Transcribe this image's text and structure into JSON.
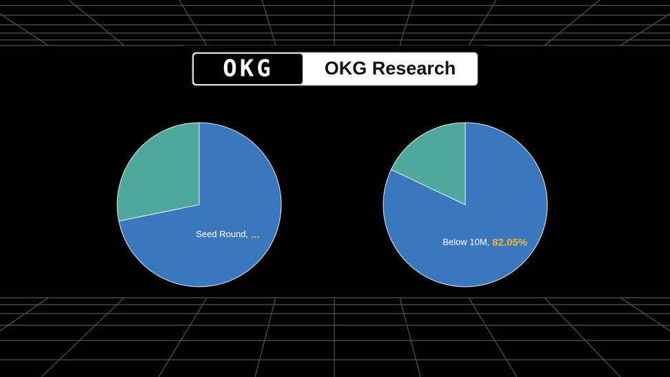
{
  "header": {
    "logo": "OKG",
    "title": "OKG Research"
  },
  "chart_data": [
    {
      "type": "pie",
      "categories": [
        "Seed Round,",
        null
      ],
      "values": [
        71.8,
        28.2
      ],
      "value_labels": [
        "...",
        null
      ],
      "colors": [
        "#3a77bd",
        "#4fa89c"
      ]
    },
    {
      "type": "pie",
      "categories": [
        "Below 10M,",
        null
      ],
      "values": [
        82.05,
        17.95
      ],
      "value_labels": [
        "82.05%",
        null
      ],
      "colors": [
        "#3a77bd",
        "#4fa89c"
      ]
    }
  ]
}
